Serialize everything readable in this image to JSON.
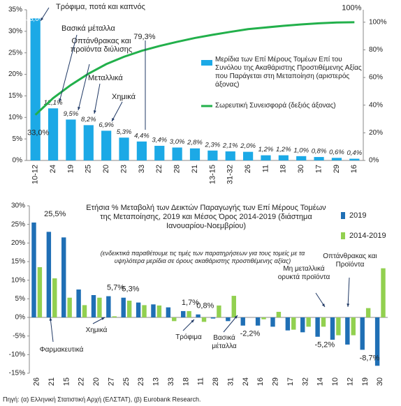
{
  "chart_data": [
    {
      "type": "bar",
      "categories": [
        "10-12",
        "24",
        "19",
        "25",
        "20",
        "23",
        "33",
        "22",
        "28",
        "21",
        "13-15",
        "31-32",
        "26",
        "11",
        "18",
        "30",
        "17",
        "29",
        "16"
      ],
      "series": [
        {
          "name": "Μερίδια των Επί Μέρους Τομέων Επί του Συνόλου της Ακαθάριστης Προστιθέμενης Αξίας που Παράγεται στη Μεταποίηση (αριστερός άξονας)",
          "color": "#1ca9e6",
          "type": "bar",
          "values": [
            33.0,
            12.1,
            9.5,
            8.2,
            6.9,
            5.3,
            4.4,
            3.4,
            3.0,
            2.8,
            2.3,
            2.1,
            2.0,
            1.2,
            1.2,
            1.0,
            0.8,
            0.6,
            0.4
          ],
          "value_labels": [
            "33,0%",
            "12,1%",
            "9,5%",
            "8,2%",
            "6,9%",
            "5,3%",
            "4,4%",
            "3,4%",
            "3,0%",
            "2,8%",
            "2,3%",
            "2,1%",
            "2,0%",
            "1,2%",
            "1,2%",
            "1,0%",
            "0,8%",
            "0,6%",
            "0,4%"
          ]
        },
        {
          "name": "Σωρευτική Συνεισφορά (δεξιός άξονας)",
          "color": "#22b04b",
          "type": "line",
          "axis": "y2",
          "values": [
            33.0,
            45.1,
            54.6,
            62.8,
            69.7,
            75.0,
            79.3,
            82.8,
            85.8,
            88.6,
            90.9,
            93.0,
            95.0,
            96.2,
            97.4,
            98.4,
            99.2,
            99.8,
            100
          ],
          "value_labels": [
            "33,0%",
            null,
            null,
            null,
            null,
            null,
            "79,3%",
            null,
            null,
            null,
            null,
            null,
            null,
            null,
            null,
            null,
            null,
            null,
            "100%"
          ]
        }
      ],
      "ylim": [
        0,
        35
      ],
      "yticks": [
        {
          "value": 0,
          "label": "0%"
        },
        {
          "value": 5,
          "label": "5%"
        },
        {
          "value": 10,
          "label": "10%"
        },
        {
          "value": 15,
          "label": "15%"
        },
        {
          "value": 20,
          "label": "20%"
        },
        {
          "value": 25,
          "label": "25%"
        },
        {
          "value": 30,
          "label": "30%"
        },
        {
          "value": 35,
          "label": "35%"
        }
      ],
      "y2lim": [
        0,
        109
      ],
      "y2ticks": [
        {
          "value": 0,
          "label": "0%"
        },
        {
          "value": 20,
          "label": "20%"
        },
        {
          "value": 40,
          "label": "40%"
        },
        {
          "value": 60,
          "label": "60%"
        },
        {
          "value": 80,
          "label": "80%"
        },
        {
          "value": 100,
          "label": "100%"
        }
      ],
      "annotations": [
        "Τρόφιμα, ποτά και καπνός",
        "Βασικά μέταλλα",
        "Οπτάνθρακας και προϊόντα διύλισης",
        "Μεταλλικά",
        "Χημικά"
      ]
    },
    {
      "type": "grouped-bar",
      "title": "Ετήσια % Μεταβολή των Δεικτών Παραγωγής των Επί Μέρους Τομέων της Μεταποίησης, 2019 και Μέσος Όρος 2014-2019 (διάστημα Ιανουαρίου-Νοεμβρίου)",
      "note": "(ενδεικτικά παραθέτουμε τις τιμές των παρατηρήσεων για τους τομείς με τα υψηλότερα μερίδια σε όρους ακαθάριστης προστιθέμενης αξίας)",
      "categories": [
        "26",
        "21",
        "15",
        "22",
        "20",
        "27",
        "25",
        "23",
        "13",
        "33",
        "18",
        "11",
        "28",
        "31",
        "24",
        "16",
        "29",
        "17",
        "32",
        "14",
        "10",
        "12",
        "19",
        "30"
      ],
      "series": [
        {
          "name": "2019",
          "color": "#1f6fb5",
          "values": [
            25.5,
            23,
            21.5,
            7.5,
            6,
            5.7,
            5.3,
            4,
            3.5,
            2.7,
            1.7,
            0.8,
            -0.3,
            -1,
            -2.2,
            -2.2,
            -2.5,
            -3.5,
            -4,
            -5.2,
            -6,
            -7.3,
            -8.7,
            -13
          ],
          "value_labels": [
            "25,5%",
            null,
            null,
            null,
            null,
            "5,7%",
            "5,3%",
            null,
            null,
            null,
            "1,7%",
            "0,8%",
            null,
            null,
            "-2,2%",
            null,
            null,
            null,
            null,
            "-5,2%",
            null,
            null,
            "-8,7%",
            null
          ]
        },
        {
          "name": "2014-2019",
          "color": "#92d050",
          "values": [
            13.5,
            10.5,
            5.3,
            3.3,
            5.3,
            0.3,
            4.5,
            3.3,
            3.2,
            -1,
            1.7,
            -1.2,
            3.2,
            5.8,
            0,
            -0.5,
            1.5,
            -3.3,
            -2.5,
            -2.5,
            -4.8,
            -4.8,
            2.5,
            13.2
          ]
        }
      ],
      "ylim": [
        -15,
        30
      ],
      "yticks": [
        {
          "value": -15,
          "label": "-15%"
        },
        {
          "value": -10,
          "label": "-10%"
        },
        {
          "value": -5,
          "label": "-5%"
        },
        {
          "value": 0,
          "label": "0%"
        },
        {
          "value": 5,
          "label": "5%"
        },
        {
          "value": 10,
          "label": "10%"
        },
        {
          "value": 15,
          "label": "15%"
        },
        {
          "value": 20,
          "label": "20%"
        },
        {
          "value": 25,
          "label": "25%"
        },
        {
          "value": 30,
          "label": "30%"
        }
      ],
      "annotations": [
        "Φαρμακευτικά",
        "Χημικά",
        "Τρόφιμα",
        "Βασικά μέταλλα",
        "Μη μεταλλικά ορυκτά προϊόντα",
        "Οπτάνθρακας και Προϊόντα"
      ]
    }
  ],
  "source": "Πηγή: (α) Ελληνική Στατιστική Αρχή (ΕΛΣΤΑΤ), (β) Eurobank Research."
}
